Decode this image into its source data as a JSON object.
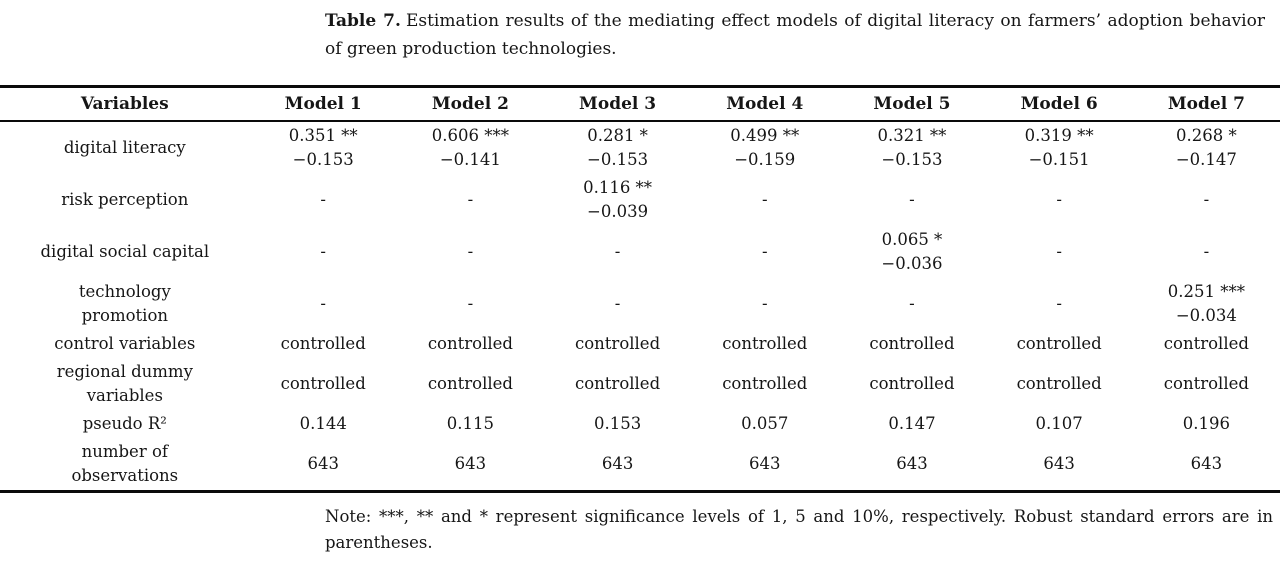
{
  "caption": {
    "label": "Table 7.",
    "text": "Estimation results of the mediating effect models of digital literacy on farmers’ adoption behavior of green production technologies."
  },
  "table": {
    "columns": [
      "Variables",
      "Model 1",
      "Model 2",
      "Model 3",
      "Model 4",
      "Model 5",
      "Model 6",
      "Model 7"
    ],
    "rows": [
      {
        "label": "digital literacy",
        "cells": [
          "0.351 **\n−0.153",
          "0.606 ***\n−0.141",
          "0.281 *\n−0.153",
          "0.499 **\n−0.159",
          "0.321 **\n−0.153",
          "0.319 **\n−0.151",
          "0.268 *\n−0.147"
        ]
      },
      {
        "label": "risk perception",
        "cells": [
          "-",
          "-",
          "0.116 **\n−0.039",
          "-",
          "-",
          "-",
          "-"
        ]
      },
      {
        "label": "digital social capital",
        "cells": [
          "-",
          "-",
          "-",
          "-",
          "0.065 *\n−0.036",
          "-",
          "-"
        ]
      },
      {
        "label": "technology\npromotion",
        "cells": [
          "-",
          "-",
          "-",
          "-",
          "-",
          "-",
          "0.251 ***\n−0.034"
        ]
      },
      {
        "label": "control variables",
        "cells": [
          "controlled",
          "controlled",
          "controlled",
          "controlled",
          "controlled",
          "controlled",
          "controlled"
        ]
      },
      {
        "label": "regional dummy\nvariables",
        "cells": [
          "controlled",
          "controlled",
          "controlled",
          "controlled",
          "controlled",
          "controlled",
          "controlled"
        ]
      },
      {
        "label": "pseudo R²",
        "cells": [
          "0.144",
          "0.115",
          "0.153",
          "0.057",
          "0.147",
          "0.107",
          "0.196"
        ]
      },
      {
        "label": "number of\nobservations",
        "cells": [
          "643",
          "643",
          "643",
          "643",
          "643",
          "643",
          "643"
        ]
      }
    ]
  },
  "note": "Note: ***, ** and * represent significance levels of 1, 5 and 10%, respectively. Robust standard errors are in parentheses."
}
